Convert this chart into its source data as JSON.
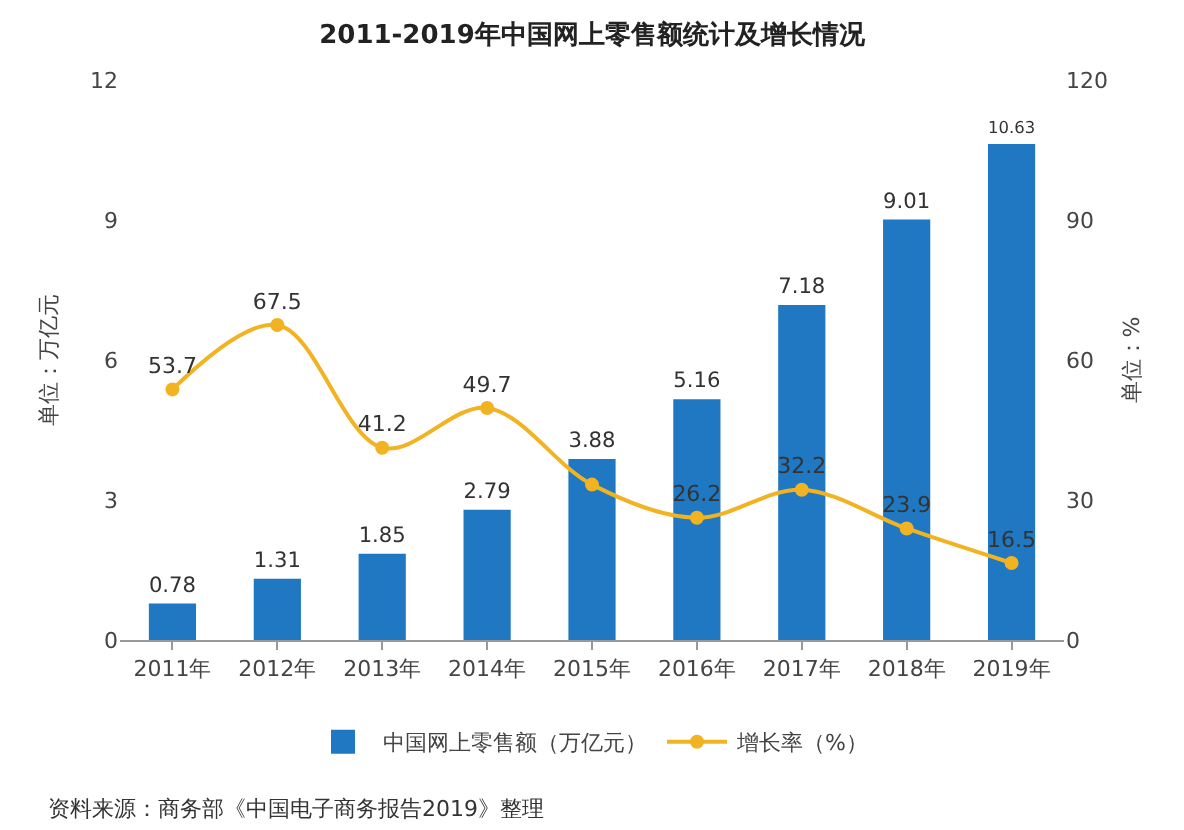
{
  "chart_data": {
    "type": "bar",
    "title": "2011-2019年中国网上零售额统计及增长情况",
    "categories": [
      "2011年",
      "2012年",
      "2013年",
      "2014年",
      "2015年",
      "2016年",
      "2017年",
      "2018年",
      "2019年"
    ],
    "series": [
      {
        "name": "中国网上零售额（万亿元）",
        "color": "#1f78c1",
        "values": [
          0.78,
          1.31,
          1.85,
          2.79,
          3.88,
          5.16,
          7.18,
          9.01,
          10.63
        ]
      },
      {
        "name": "增长率（%）",
        "type": "line",
        "axis": "y2",
        "color": "#f2b322",
        "values": [
          53.7,
          67.5,
          41.2,
          49.7,
          33.3,
          26.2,
          32.2,
          23.9,
          16.5
        ],
        "value_labels": [
          "53.7",
          "67.5",
          "41.2",
          "49.7",
          null,
          "26.2",
          "32.2",
          "23.9",
          "16.5"
        ]
      }
    ],
    "ylabel": "单位：万亿元",
    "y2label": "单位：%",
    "ylim": [
      0,
      12
    ],
    "yticks": [
      0,
      3,
      6,
      9,
      12
    ],
    "y2lim": [
      0,
      120
    ],
    "y2ticks": [
      0,
      30,
      60,
      90,
      120
    ],
    "data_labels": true,
    "grid": false,
    "legend": "bottom",
    "marker": "circle",
    "line_style": "solid",
    "annotations": [
      "资料来源：商务部《中国电子商务报告2019》整理"
    ]
  }
}
